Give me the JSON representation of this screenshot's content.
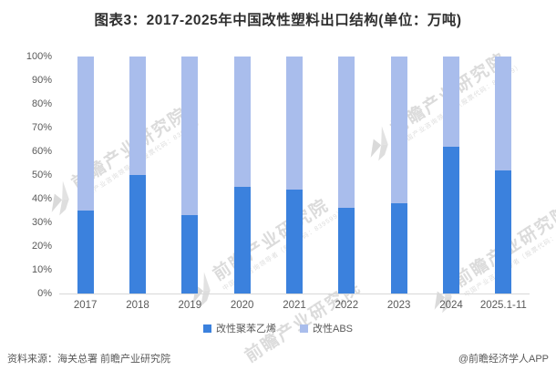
{
  "title": "图表3：2017-2025年中国改性塑料出口结构(单位：万吨)",
  "chart_data": {
    "type": "bar",
    "subtype": "stacked-percent-column",
    "title": "图表3：2017-2025年中国改性塑料出口结构(单位：万吨)",
    "categories": [
      "2017",
      "2018",
      "2019",
      "2020",
      "2021",
      "2022",
      "2023",
      "2024",
      "2025.1-11"
    ],
    "series": [
      {
        "name": "改性聚苯乙烯",
        "color": "#3b81dd",
        "values": [
          35,
          50,
          33,
          45,
          44,
          36,
          38,
          62,
          52
        ]
      },
      {
        "name": "改性ABS",
        "color": "#a9bdec",
        "values": [
          65,
          50,
          67,
          55,
          56,
          64,
          62,
          38,
          48
        ]
      }
    ],
    "xlabel": "",
    "ylabel": "",
    "ylim": [
      0,
      100
    ],
    "y_ticks": [
      "0%",
      "10%",
      "20%",
      "30%",
      "40%",
      "50%",
      "60%",
      "70%",
      "80%",
      "90%",
      "100%"
    ],
    "grid": false,
    "legend_position": "bottom",
    "axis_color": "#d8d8d8",
    "tick_label_color": "#595959"
  },
  "footer": {
    "source": "资料来源：海关总署 前瞻产业研究院",
    "credit": "@前瞻经济学人APP"
  },
  "watermark": {
    "text": "前瞻产业研究院",
    "subtext": "中国产业咨询领导者（股票代码：839599）"
  }
}
